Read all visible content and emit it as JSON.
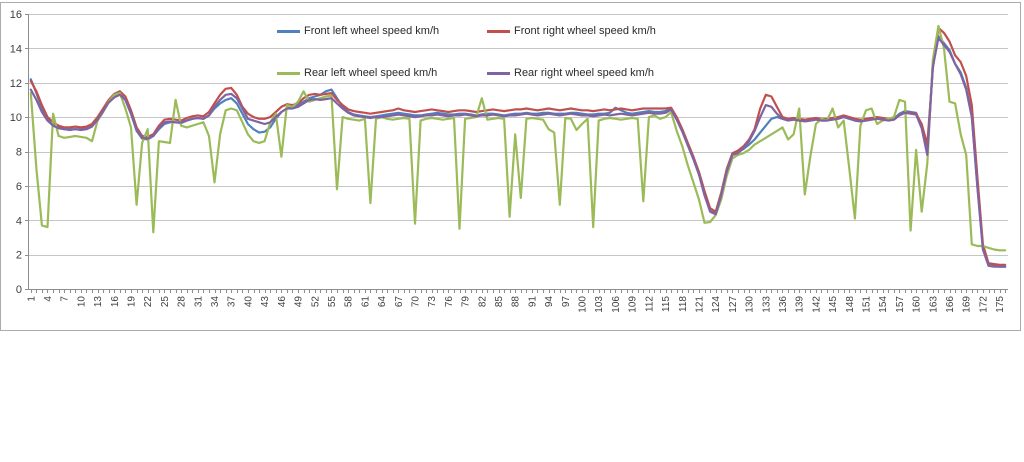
{
  "chart_data": {
    "type": "line",
    "title": "",
    "xlabel": "",
    "ylabel": "",
    "n_points": 176,
    "x_start": 1,
    "x_label_step": 3,
    "ylim": [
      0,
      16
    ],
    "y_ticks": [
      0,
      2,
      4,
      6,
      8,
      10,
      12,
      14,
      16
    ],
    "grid": "horizontal",
    "legend_position": "top-inside-two-rows",
    "series": [
      {
        "name": "Front left wheel speed km/h",
        "color": "#4F81BD",
        "values": [
          12.2,
          11.4,
          10.5,
          9.9,
          9.6,
          9.4,
          9.3,
          9.25,
          9.3,
          9.3,
          9.35,
          9.5,
          9.9,
          10.4,
          10.9,
          11.2,
          11.35,
          11.0,
          10.2,
          9.2,
          8.75,
          8.7,
          8.9,
          9.3,
          9.6,
          9.7,
          9.7,
          9.65,
          9.8,
          9.9,
          9.95,
          9.9,
          10.1,
          10.5,
          10.8,
          11.0,
          11.1,
          10.8,
          10.2,
          9.6,
          9.3,
          9.1,
          9.15,
          9.4,
          9.9,
          10.3,
          10.5,
          10.6,
          10.7,
          10.9,
          11.1,
          11.2,
          11.3,
          11.5,
          11.6,
          11.1,
          10.6,
          10.3,
          10.15,
          10.1,
          10.05,
          10.0,
          10.05,
          10.1,
          10.15,
          10.2,
          10.25,
          10.2,
          10.15,
          10.1,
          10.1,
          10.15,
          10.2,
          10.25,
          10.2,
          10.15,
          10.15,
          10.2,
          10.2,
          10.15,
          10.1,
          10.15,
          10.2,
          10.2,
          10.15,
          10.1,
          10.15,
          10.2,
          10.2,
          10.25,
          10.2,
          10.2,
          10.25,
          10.25,
          10.2,
          10.2,
          10.2,
          10.25,
          10.25,
          10.2,
          10.15,
          10.15,
          10.2,
          10.2,
          10.25,
          10.55,
          10.4,
          10.25,
          10.2,
          10.25,
          10.3,
          10.35,
          10.3,
          10.3,
          10.35,
          10.5,
          9.9,
          9.2,
          8.4,
          7.6,
          6.7,
          5.5,
          4.55,
          4.4,
          5.5,
          6.9,
          7.85,
          7.95,
          8.15,
          8.4,
          8.7,
          9.1,
          9.5,
          9.9,
          10.0,
          9.9,
          9.85,
          9.9,
          9.85,
          9.8,
          9.85,
          9.9,
          9.85,
          9.85,
          9.9,
          9.95,
          10.05,
          9.95,
          9.85,
          9.8,
          9.85,
          9.9,
          9.95,
          9.9,
          9.85,
          9.9,
          10.2,
          10.35,
          10.3,
          10.25,
          9.4,
          7.85,
          13.0,
          14.7,
          14.3,
          13.9,
          13.1,
          12.6,
          11.7,
          10.1,
          6.0,
          2.4,
          1.4,
          1.35,
          1.3,
          1.3
        ]
      },
      {
        "name": "Front right wheel speed km/h",
        "color": "#C0504D",
        "values": [
          12.1,
          11.5,
          10.7,
          10.0,
          9.7,
          9.5,
          9.4,
          9.4,
          9.45,
          9.4,
          9.45,
          9.6,
          10.0,
          10.5,
          11.0,
          11.35,
          11.5,
          11.2,
          10.4,
          9.4,
          8.9,
          8.85,
          9.0,
          9.5,
          9.85,
          9.9,
          9.85,
          9.8,
          9.95,
          10.05,
          10.1,
          10.05,
          10.3,
          10.8,
          11.3,
          11.65,
          11.7,
          11.3,
          10.6,
          10.2,
          10.0,
          9.9,
          9.9,
          10.0,
          10.3,
          10.6,
          10.75,
          10.7,
          10.8,
          11.1,
          11.3,
          11.35,
          11.3,
          11.35,
          11.4,
          11.0,
          10.7,
          10.45,
          10.35,
          10.3,
          10.25,
          10.2,
          10.25,
          10.3,
          10.35,
          10.4,
          10.5,
          10.4,
          10.35,
          10.3,
          10.35,
          10.4,
          10.45,
          10.4,
          10.35,
          10.3,
          10.35,
          10.4,
          10.4,
          10.35,
          10.3,
          10.35,
          10.4,
          10.45,
          10.4,
          10.35,
          10.4,
          10.45,
          10.45,
          10.5,
          10.45,
          10.4,
          10.45,
          10.5,
          10.45,
          10.4,
          10.45,
          10.5,
          10.45,
          10.4,
          10.4,
          10.35,
          10.4,
          10.45,
          10.4,
          10.45,
          10.5,
          10.45,
          10.4,
          10.45,
          10.5,
          10.5,
          10.5,
          10.5,
          10.5,
          10.55,
          10.0,
          9.3,
          8.5,
          7.7,
          6.8,
          5.7,
          4.7,
          4.5,
          5.6,
          7.0,
          7.9,
          8.05,
          8.3,
          8.7,
          9.3,
          10.5,
          11.3,
          11.2,
          10.6,
          10.0,
          9.9,
          9.95,
          9.9,
          9.85,
          9.9,
          9.95,
          9.9,
          9.9,
          9.95,
          10.0,
          10.1,
          10.0,
          9.9,
          9.85,
          9.9,
          9.95,
          10.0,
          9.95,
          9.9,
          9.95,
          10.1,
          10.3,
          10.25,
          10.2,
          9.6,
          8.4,
          12.8,
          15.2,
          14.9,
          14.4,
          13.6,
          13.2,
          12.4,
          10.7,
          6.5,
          2.6,
          1.5,
          1.45,
          1.4,
          1.4
        ]
      },
      {
        "name": "Rear left wheel speed km/h",
        "color": "#9BBB59",
        "values": [
          11.4,
          7.0,
          3.7,
          3.6,
          10.2,
          8.9,
          8.8,
          8.85,
          8.9,
          8.85,
          8.8,
          8.6,
          9.8,
          10.3,
          10.9,
          11.3,
          11.4,
          10.5,
          9.4,
          4.9,
          8.5,
          9.3,
          3.3,
          8.6,
          8.55,
          8.5,
          11.0,
          9.5,
          9.4,
          9.5,
          9.6,
          9.7,
          8.9,
          6.2,
          9.0,
          10.4,
          10.5,
          10.4,
          9.7,
          9.0,
          8.6,
          8.5,
          8.6,
          9.7,
          10.2,
          7.7,
          10.7,
          10.6,
          10.9,
          11.5,
          10.9,
          11.0,
          11.1,
          11.2,
          11.25,
          5.8,
          10.0,
          9.9,
          9.85,
          9.8,
          9.9,
          5.0,
          9.9,
          10.0,
          9.9,
          9.85,
          9.9,
          9.95,
          9.9,
          3.8,
          9.8,
          9.9,
          9.95,
          9.9,
          9.85,
          9.9,
          9.95,
          3.5,
          9.9,
          9.95,
          10.0,
          11.1,
          9.85,
          9.9,
          9.95,
          9.9,
          4.2,
          9.0,
          5.3,
          9.9,
          9.95,
          9.9,
          9.85,
          9.3,
          9.1,
          4.9,
          9.95,
          9.9,
          9.25,
          9.6,
          9.9,
          3.6,
          9.8,
          9.9,
          9.95,
          9.9,
          9.85,
          9.9,
          9.95,
          9.9,
          5.1,
          10.0,
          10.1,
          9.9,
          10.0,
          10.3,
          9.2,
          8.3,
          7.2,
          6.2,
          5.2,
          3.85,
          3.9,
          4.3,
          5.2,
          6.6,
          7.6,
          7.8,
          7.9,
          8.1,
          8.4,
          8.6,
          8.8,
          9.0,
          9.2,
          9.4,
          8.7,
          9.0,
          10.5,
          5.5,
          7.7,
          9.6,
          9.9,
          9.8,
          10.5,
          9.4,
          9.8,
          7.0,
          4.1,
          9.5,
          10.4,
          10.5,
          9.6,
          9.8,
          9.9,
          10.0,
          11.0,
          10.9,
          3.4,
          8.1,
          4.5,
          7.3,
          13.3,
          15.3,
          14.0,
          10.9,
          10.8,
          9.0,
          7.8,
          2.6,
          2.5,
          2.5,
          2.4,
          2.3,
          2.25,
          2.25
        ]
      },
      {
        "name": "Rear right wheel speed km/h",
        "color": "#8064A2",
        "values": [
          11.6,
          11.0,
          10.3,
          9.8,
          9.5,
          9.35,
          9.3,
          9.3,
          9.3,
          9.25,
          9.3,
          9.45,
          9.85,
          10.35,
          10.85,
          11.15,
          11.3,
          11.0,
          10.2,
          9.25,
          8.8,
          8.75,
          8.9,
          9.35,
          9.7,
          9.75,
          9.7,
          9.7,
          9.8,
          9.9,
          9.95,
          9.9,
          10.1,
          10.6,
          11.0,
          11.3,
          11.35,
          11.1,
          10.5,
          9.9,
          9.8,
          9.7,
          9.6,
          9.7,
          10.0,
          10.3,
          10.5,
          10.5,
          10.6,
          10.8,
          11.0,
          11.05,
          11.0,
          11.05,
          11.1,
          10.8,
          10.5,
          10.25,
          10.1,
          10.05,
          10.0,
          9.95,
          10.0,
          10.0,
          10.05,
          10.1,
          10.15,
          10.1,
          10.05,
          10.0,
          10.05,
          10.1,
          10.1,
          10.15,
          10.1,
          10.05,
          10.1,
          10.1,
          10.15,
          10.1,
          10.05,
          10.1,
          10.1,
          10.15,
          10.1,
          10.05,
          10.1,
          10.1,
          10.15,
          10.2,
          10.15,
          10.1,
          10.15,
          10.2,
          10.15,
          10.1,
          10.15,
          10.2,
          10.15,
          10.1,
          10.1,
          10.05,
          10.1,
          10.15,
          10.1,
          10.15,
          10.2,
          10.15,
          10.1,
          10.15,
          10.2,
          10.25,
          10.2,
          10.2,
          10.25,
          10.45,
          9.85,
          9.15,
          8.35,
          7.55,
          6.65,
          5.45,
          4.5,
          4.35,
          5.45,
          6.85,
          7.8,
          7.9,
          8.2,
          8.6,
          9.2,
          10.0,
          10.7,
          10.6,
          10.2,
          9.9,
          9.8,
          9.85,
          9.8,
          9.75,
          9.8,
          9.85,
          9.8,
          9.8,
          9.85,
          9.9,
          10.0,
          9.9,
          9.8,
          9.75,
          9.8,
          9.85,
          9.9,
          9.85,
          9.8,
          9.85,
          10.1,
          10.25,
          10.2,
          10.15,
          9.35,
          7.8,
          12.9,
          14.6,
          14.2,
          13.8,
          13.1,
          12.5,
          11.6,
          10.0,
          5.9,
          2.3,
          1.35,
          1.3,
          1.3,
          1.3
        ]
      }
    ]
  },
  "colors": {
    "background": "#FFFFFF",
    "frame_border": "#ABABAB",
    "gridline": "#C6C6C6",
    "axis": "#8E8E8E",
    "tick_label": "#3F3F3F",
    "legend_text": "#2A2A2A"
  }
}
